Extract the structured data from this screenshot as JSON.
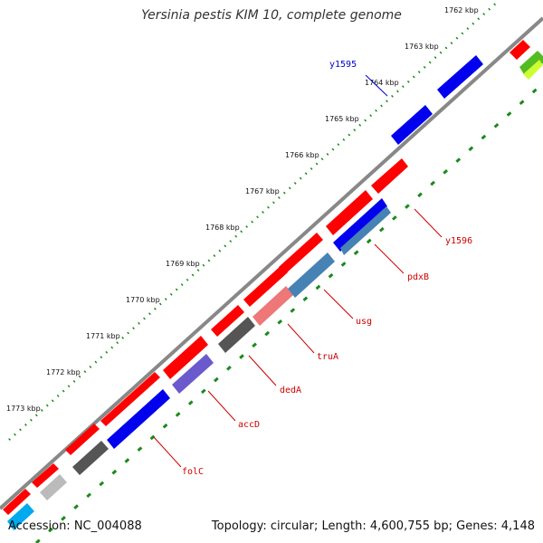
{
  "title": "Yersinia pestis KIM 10, complete genome",
  "footer": {
    "accession": "Accession: NC_004088",
    "summary": "Topology: circular; Length: 4,600,755 bp; Genes: 4,148"
  },
  "colors": {
    "forward_cds": "#ff0000",
    "reverse_cds": "#0000ee",
    "backbone": "#888888",
    "ruler_dots": "#1a8a1a",
    "gene_label": "#cc0000",
    "blue_label": "#0000cc"
  },
  "ruler": [
    {
      "label": "1762 kbp",
      "pos": 1762
    },
    {
      "label": "1763 kbp",
      "pos": 1763
    },
    {
      "label": "1764 kbp",
      "pos": 1764
    },
    {
      "label": "1765 kbp",
      "pos": 1765
    },
    {
      "label": "1766 kbp",
      "pos": 1766
    },
    {
      "label": "1767 kbp",
      "pos": 1767
    },
    {
      "label": "1768 kbp",
      "pos": 1768
    },
    {
      "label": "1769 kbp",
      "pos": 1769
    },
    {
      "label": "1770 kbp",
      "pos": 1770
    },
    {
      "label": "1771 kbp",
      "pos": 1771
    },
    {
      "label": "1772 kbp",
      "pos": 1772
    },
    {
      "label": "1773 kbp",
      "pos": 1773
    }
  ],
  "gene_labels": [
    {
      "name": "y1595",
      "color": "blue"
    },
    {
      "name": "y1596",
      "color": "red"
    },
    {
      "name": "pdxB",
      "color": "red"
    },
    {
      "name": "usg",
      "color": "red"
    },
    {
      "name": "truA",
      "color": "red"
    },
    {
      "name": "dedA",
      "color": "red"
    },
    {
      "name": "accD",
      "color": "red"
    },
    {
      "name": "folC",
      "color": "red"
    }
  ]
}
